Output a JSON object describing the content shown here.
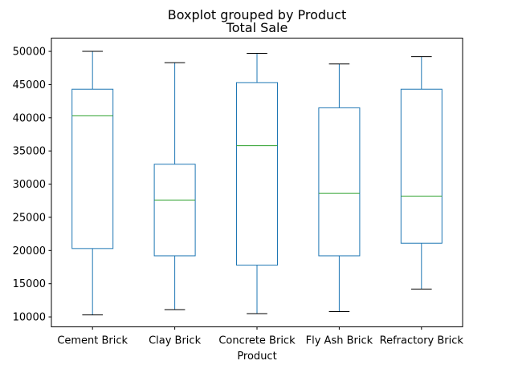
{
  "chart_data": {
    "type": "boxplot",
    "suptitle": "Boxplot grouped by Product",
    "title": "Total Sale",
    "xlabel": "Product",
    "ylabel": "",
    "ylim": [
      8500,
      52000
    ],
    "yticks": [
      10000,
      15000,
      20000,
      25000,
      30000,
      35000,
      40000,
      45000,
      50000
    ],
    "grid": false,
    "categories": [
      "Cement Brick",
      "Clay Brick",
      "Concrete Brick",
      "Fly Ash Brick",
      "Refractory Brick"
    ],
    "boxes": [
      {
        "category": "Cement Brick",
        "min": 10300,
        "q1": 20300,
        "median": 40300,
        "q3": 44300,
        "max": 50000
      },
      {
        "category": "Clay Brick",
        "min": 11100,
        "q1": 19200,
        "median": 27600,
        "q3": 33000,
        "max": 48300
      },
      {
        "category": "Concrete Brick",
        "min": 10500,
        "q1": 17800,
        "median": 35800,
        "q3": 45300,
        "max": 49700
      },
      {
        "category": "Fly Ash Brick",
        "min": 10800,
        "q1": 19200,
        "median": 28600,
        "q3": 41500,
        "max": 48100
      },
      {
        "category": "Refractory Brick",
        "min": 14200,
        "q1": 21100,
        "median": 28200,
        "q3": 44300,
        "max": 49200
      }
    ],
    "colors": {
      "box": "#1f77b4",
      "median": "#2ca02c",
      "cap": "#000000",
      "axis": "#000000"
    }
  }
}
